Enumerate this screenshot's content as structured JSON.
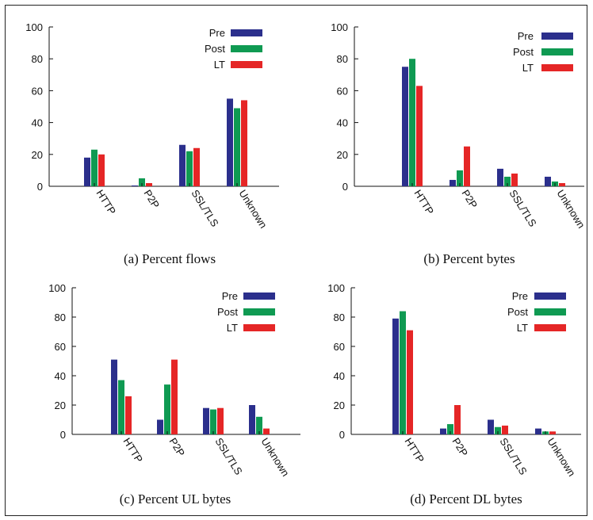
{
  "colors": {
    "Pre": "#2b2f8c",
    "Post": "#0f9a52",
    "LT": "#e52626",
    "axis": "#111111"
  },
  "chart_data": [
    {
      "type": "bar",
      "title": "(a) Percent flows",
      "categories": [
        "HTTP",
        "P2P",
        "SSL/TLS",
        "Unknown"
      ],
      "ylim": [
        0,
        100
      ],
      "yticks": [
        0,
        20,
        40,
        60,
        80,
        100
      ],
      "legend": "top-right",
      "series": [
        {
          "name": "Pre",
          "values": [
            18,
            0.5,
            26,
            55
          ]
        },
        {
          "name": "Post",
          "values": [
            23,
            5,
            22,
            49
          ]
        },
        {
          "name": "LT",
          "values": [
            20,
            2,
            24,
            54
          ]
        }
      ]
    },
    {
      "type": "bar",
      "title": "(b) Percent bytes",
      "categories": [
        "HTTP",
        "P2P",
        "SSL/TLS",
        "Unknown"
      ],
      "ylim": [
        0,
        100
      ],
      "yticks": [
        0,
        20,
        40,
        60,
        80,
        100
      ],
      "legend": "top-right",
      "series": [
        {
          "name": "Pre",
          "values": [
            75,
            4,
            11,
            6
          ]
        },
        {
          "name": "Post",
          "values": [
            80,
            10,
            6,
            3
          ]
        },
        {
          "name": "LT",
          "values": [
            63,
            25,
            8,
            2
          ]
        }
      ]
    },
    {
      "type": "bar",
      "title": "(c) Percent UL bytes",
      "categories": [
        "HTTP",
        "P2P",
        "SSL/TLS",
        "Unknown"
      ],
      "ylim": [
        0,
        100
      ],
      "yticks": [
        0,
        20,
        40,
        60,
        80,
        100
      ],
      "legend": "top-right",
      "series": [
        {
          "name": "Pre",
          "values": [
            51,
            10,
            18,
            20
          ]
        },
        {
          "name": "Post",
          "values": [
            37,
            34,
            17,
            12
          ]
        },
        {
          "name": "LT",
          "values": [
            26,
            51,
            18,
            4
          ]
        }
      ]
    },
    {
      "type": "bar",
      "title": "(d) Percent DL bytes",
      "categories": [
        "HTTP",
        "P2P",
        "SSL/TLS",
        "Unknown"
      ],
      "ylim": [
        0,
        100
      ],
      "yticks": [
        0,
        20,
        40,
        60,
        80,
        100
      ],
      "legend": "top-right",
      "series": [
        {
          "name": "Pre",
          "values": [
            79,
            4,
            10,
            4
          ]
        },
        {
          "name": "Post",
          "values": [
            84,
            7,
            5,
            2
          ]
        },
        {
          "name": "LT",
          "values": [
            71,
            20,
            6,
            2
          ]
        }
      ]
    }
  ]
}
